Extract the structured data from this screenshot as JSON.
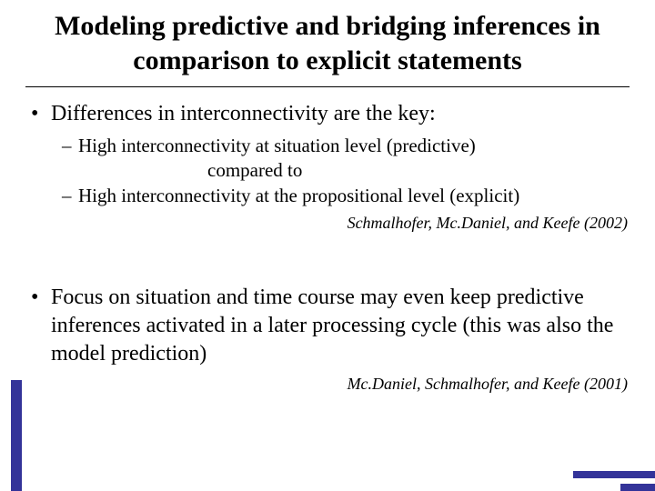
{
  "colors": {
    "accent": "#333399",
    "background": "#ffffff",
    "text": "#000000"
  },
  "title": "Modeling predictive and bridging inferences in comparison to explicit statements",
  "bullet1": {
    "text": "Differences in interconnectivity are the key:",
    "sub1": "High interconnectivity at situation level (predictive)",
    "mid": "compared to",
    "sub2": "High interconnectivity at the propositional level (explicit)",
    "citation": "Schmalhofer, Mc.Daniel, and Keefe (2002)"
  },
  "bullet2": {
    "text": "Focus on situation and time course may even keep predictive  inferences activated in a later processing cycle (this was also the model prediction)",
    "citation": "Mc.Daniel, Schmalhofer, and Keefe (2001)"
  }
}
